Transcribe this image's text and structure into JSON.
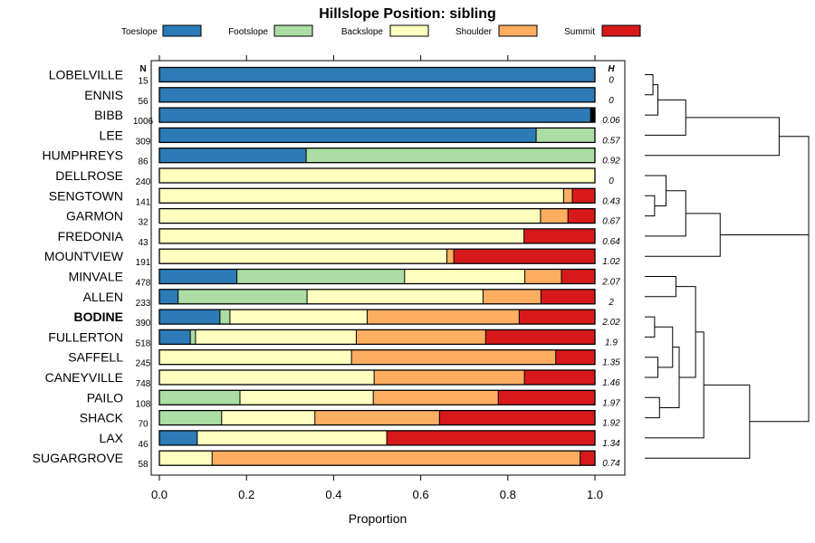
{
  "chart_data": {
    "type": "bar",
    "orientation": "horizontal-stacked",
    "title": "Hillslope Position: sibling",
    "xlabel": "Proportion",
    "xlim": [
      0,
      1
    ],
    "xticks": [
      "0.0",
      "0.2",
      "0.4",
      "0.6",
      "0.8",
      "1.0"
    ],
    "n_header": "N",
    "h_header": "H",
    "legend": [
      {
        "name": "Toeslope",
        "color": "#2c7bb6"
      },
      {
        "name": "Footslope",
        "color": "#abdda4"
      },
      {
        "name": "Backslope",
        "color": "#ffffbf"
      },
      {
        "name": "Shoulder",
        "color": "#fdae61"
      },
      {
        "name": "Summit",
        "color": "#d7191c"
      }
    ],
    "rows": [
      {
        "name": "LOBELVILLE",
        "n": "15",
        "h": "0",
        "bold": false,
        "values": [
          1.0,
          0,
          0,
          0,
          0
        ],
        "missing": 0
      },
      {
        "name": "ENNIS",
        "n": "56",
        "h": "0",
        "bold": false,
        "values": [
          1.0,
          0,
          0,
          0,
          0
        ],
        "missing": 0
      },
      {
        "name": "BIBB",
        "n": "1006",
        "h": "0.06",
        "bold": false,
        "values": [
          0.99,
          0,
          0,
          0,
          0
        ],
        "missing": 0.01
      },
      {
        "name": "LEE",
        "n": "309",
        "h": "0.57",
        "bold": false,
        "values": [
          0.865,
          0.135,
          0,
          0,
          0
        ],
        "missing": 0
      },
      {
        "name": "HUMPHREYS",
        "n": "86",
        "h": "0.92",
        "bold": false,
        "values": [
          0.337,
          0.663,
          0,
          0,
          0
        ],
        "missing": 0
      },
      {
        "name": "DELLROSE",
        "n": "240",
        "h": "0",
        "bold": false,
        "values": [
          0,
          0,
          1.0,
          0,
          0
        ],
        "missing": 0
      },
      {
        "name": "SENGTOWN",
        "n": "141",
        "h": "0.43",
        "bold": false,
        "values": [
          0,
          0,
          0.928,
          0.02,
          0.052
        ],
        "missing": 0
      },
      {
        "name": "GARMON",
        "n": "32",
        "h": "0.67",
        "bold": false,
        "values": [
          0,
          0,
          0.875,
          0.063,
          0.062
        ],
        "missing": 0
      },
      {
        "name": "FREDONIA",
        "n": "43",
        "h": "0.64",
        "bold": false,
        "values": [
          0,
          0,
          0.837,
          0,
          0.163
        ],
        "missing": 0
      },
      {
        "name": "MOUNTVIEW",
        "n": "191",
        "h": "1.02",
        "bold": false,
        "values": [
          0,
          0,
          0.66,
          0.016,
          0.324
        ],
        "missing": 0
      },
      {
        "name": "MINVALE",
        "n": "478",
        "h": "2.07",
        "bold": false,
        "values": [
          0.178,
          0.385,
          0.276,
          0.084,
          0.077
        ],
        "missing": 0
      },
      {
        "name": "ALLEN",
        "n": "233",
        "h": "2",
        "bold": false,
        "values": [
          0.043,
          0.296,
          0.404,
          0.133,
          0.124
        ],
        "missing": 0
      },
      {
        "name": "BODINE",
        "n": "390",
        "h": "2.02",
        "bold": true,
        "values": [
          0.139,
          0.023,
          0.315,
          0.349,
          0.174
        ],
        "missing": 0
      },
      {
        "name": "FULLERTON",
        "n": "518",
        "h": "1.9",
        "bold": false,
        "values": [
          0.071,
          0.012,
          0.369,
          0.297,
          0.251
        ],
        "missing": 0
      },
      {
        "name": "SAFFELL",
        "n": "245",
        "h": "1.35",
        "bold": false,
        "values": [
          0,
          0,
          0.441,
          0.469,
          0.09
        ],
        "missing": 0
      },
      {
        "name": "CANEYVILLE",
        "n": "748",
        "h": "1.46",
        "bold": false,
        "values": [
          0,
          0,
          0.493,
          0.345,
          0.162
        ],
        "missing": 0
      },
      {
        "name": "PAILO",
        "n": "108",
        "h": "1.97",
        "bold": false,
        "values": [
          0,
          0.185,
          0.306,
          0.287,
          0.222
        ],
        "missing": 0
      },
      {
        "name": "SHACK",
        "n": "70",
        "h": "1.92",
        "bold": false,
        "values": [
          0,
          0.143,
          0.214,
          0.286,
          0.357
        ],
        "missing": 0
      },
      {
        "name": "LAX",
        "n": "46",
        "h": "1.34",
        "bold": false,
        "values": [
          0.087,
          0,
          0.435,
          0,
          0.478
        ],
        "missing": 0
      },
      {
        "name": "SUGARGROVE",
        "n": "58",
        "h": "0.74",
        "bold": false,
        "values": [
          0,
          0,
          0.121,
          0.845,
          0.034
        ],
        "missing": 0
      }
    ],
    "dendrogram_merges": [
      [
        0,
        1,
        0.05
      ],
      [
        2,
        -1,
        0.08
      ],
      [
        3,
        -2,
        0.25
      ],
      [
        4,
        -3,
        0.82
      ],
      [
        6,
        7,
        0.06
      ],
      [
        5,
        -5,
        0.13
      ],
      [
        8,
        -6,
        0.25
      ],
      [
        9,
        -7,
        0.46
      ],
      [
        10,
        11,
        0.19
      ],
      [
        12,
        13,
        0.06
      ],
      [
        14,
        15,
        0.08
      ],
      [
        -10,
        -11,
        0.17
      ],
      [
        16,
        17,
        0.09
      ],
      [
        -12,
        -13,
        0.21
      ],
      [
        -9,
        -14,
        0.31
      ],
      [
        18,
        -15,
        0.36
      ],
      [
        -16,
        19,
        0.64
      ],
      [
        -8,
        -17,
        1.0
      ],
      [
        -4,
        -18,
        1.0
      ]
    ]
  }
}
